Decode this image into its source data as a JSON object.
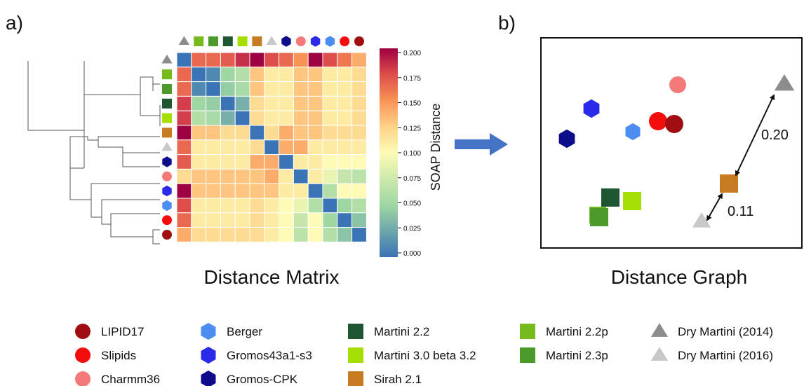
{
  "panels": {
    "a": {
      "label": "a)",
      "caption": "Distance Matrix"
    },
    "b": {
      "label": "b)",
      "caption": "Distance Graph"
    }
  },
  "colorbar": {
    "label": "SOAP Distance",
    "ticks": [
      "0.000",
      "0.025",
      "0.050",
      "0.075",
      "0.100",
      "0.125",
      "0.150",
      "0.175",
      "0.200"
    ]
  },
  "graph_labels": {
    "edge_upper": "0.20",
    "edge_lower": "0.11"
  },
  "legend": [
    {
      "name": "LIPID17",
      "shape": "circle",
      "color": "#a10e12"
    },
    {
      "name": "Slipids",
      "shape": "circle",
      "color": "#f40d0d"
    },
    {
      "name": "Charmm36",
      "shape": "circle",
      "color": "#f47a7a"
    },
    {
      "name": "Berger",
      "shape": "hexagon",
      "color": "#4b8df0"
    },
    {
      "name": "Gromos43a1-s3",
      "shape": "hexagon",
      "color": "#2a2ae8"
    },
    {
      "name": "Gromos-CPK",
      "shape": "hexagon",
      "color": "#0d0d8c"
    },
    {
      "name": "Martini 2.2",
      "shape": "square",
      "color": "#1e5631"
    },
    {
      "name": "Martini 3.0 beta 3.2",
      "shape": "square",
      "color": "#a4de02"
    },
    {
      "name": "Sirah 2.1",
      "shape": "square",
      "color": "#c87a20"
    },
    {
      "name": "Martini 2.2p",
      "shape": "square",
      "color": "#76ba1b"
    },
    {
      "name": "Martini 2.3p",
      "shape": "square",
      "color": "#4c9a2a"
    },
    {
      "name": "Dry Martini (2014)",
      "shape": "triangle",
      "color": "#8c8c8c"
    },
    {
      "name": "Dry Martini (2016)",
      "shape": "triangle",
      "color": "#c8c8c8"
    }
  ],
  "matrix_order": [
    "Dry Martini (2014)",
    "Martini 2.2p",
    "Martini 2.3p",
    "Martini 2.2",
    "Martini 3.0 beta 3.2",
    "Sirah 2.1",
    "Dry Martini (2016)",
    "Gromos-CPK",
    "Charmm36",
    "Gromos43a1-s3",
    "Berger",
    "Slipids",
    "LIPID17"
  ],
  "matrix_values": [
    [
      0.0,
      0.165,
      0.165,
      0.17,
      0.185,
      0.2,
      0.175,
      0.165,
      0.15,
      0.2,
      0.175,
      0.16,
      0.14
    ],
    [
      0.165,
      0.0,
      0.01,
      0.05,
      0.06,
      0.13,
      0.11,
      0.11,
      0.13,
      0.13,
      0.11,
      0.11,
      0.12
    ],
    [
      0.165,
      0.01,
      0.0,
      0.045,
      0.055,
      0.13,
      0.11,
      0.11,
      0.13,
      0.13,
      0.11,
      0.11,
      0.12
    ],
    [
      0.18,
      0.05,
      0.045,
      0.0,
      0.03,
      0.12,
      0.11,
      0.11,
      0.13,
      0.13,
      0.11,
      0.11,
      0.12
    ],
    [
      0.18,
      0.06,
      0.055,
      0.03,
      0.0,
      0.12,
      0.11,
      0.11,
      0.13,
      0.13,
      0.11,
      0.11,
      0.12
    ],
    [
      0.2,
      0.13,
      0.13,
      0.12,
      0.12,
      0.0,
      0.12,
      0.14,
      0.13,
      0.13,
      0.12,
      0.12,
      0.12
    ],
    [
      0.165,
      0.11,
      0.11,
      0.11,
      0.11,
      0.12,
      0.0,
      0.14,
      0.14,
      0.11,
      0.11,
      0.11,
      0.11
    ],
    [
      0.17,
      0.11,
      0.11,
      0.11,
      0.11,
      0.14,
      0.14,
      0.0,
      0.11,
      0.11,
      0.1,
      0.1,
      0.1
    ],
    [
      0.12,
      0.13,
      0.13,
      0.13,
      0.13,
      0.13,
      0.14,
      0.11,
      0.0,
      0.11,
      0.09,
      0.07,
      0.065
    ],
    [
      0.2,
      0.13,
      0.13,
      0.13,
      0.13,
      0.13,
      0.13,
      0.11,
      0.11,
      0.0,
      0.06,
      0.1,
      0.1
    ],
    [
      0.175,
      0.11,
      0.11,
      0.11,
      0.11,
      0.12,
      0.11,
      0.1,
      0.09,
      0.06,
      0.0,
      0.05,
      0.06
    ],
    [
      0.165,
      0.11,
      0.11,
      0.11,
      0.11,
      0.12,
      0.11,
      0.1,
      0.07,
      0.1,
      0.05,
      0.0,
      0.04
    ],
    [
      0.14,
      0.12,
      0.12,
      0.12,
      0.12,
      0.12,
      0.11,
      0.1,
      0.065,
      0.1,
      0.06,
      0.04,
      0.0
    ]
  ],
  "dendrogram_edges": [
    [
      [
        40,
        87
      ],
      [
        40,
        186
      ],
      [
        120,
        186
      ],
      [
        120,
        87
      ]
    ],
    [
      [
        120,
        87
      ],
      [
        120,
        135
      ]
    ],
    [
      [
        120,
        135
      ],
      [
        200,
        135
      ],
      [
        200,
        155
      ]
    ],
    [
      [
        200,
        135
      ],
      [
        200,
        110
      ]
    ],
    [
      [
        200,
        110
      ],
      [
        218,
        110
      ],
      [
        218,
        130
      ],
      [
        218,
        120
      ],
      [
        228,
        120
      ]
    ],
    [
      [
        200,
        155
      ],
      [
        200,
        165
      ],
      [
        228,
        165
      ],
      [
        228,
        150
      ],
      [
        228,
        180
      ]
    ],
    [
      [
        120,
        186
      ],
      [
        120,
        240
      ]
    ],
    [
      [
        120,
        240
      ],
      [
        100,
        240
      ],
      [
        100,
        285
      ]
    ],
    [
      [
        100,
        240
      ],
      [
        100,
        195
      ]
    ],
    [
      [
        100,
        195
      ],
      [
        125,
        195
      ],
      [
        125,
        200
      ],
      [
        140,
        200
      ]
    ],
    [
      [
        140,
        200
      ],
      [
        140,
        195
      ],
      [
        228,
        195
      ]
    ],
    [
      [
        140,
        200
      ],
      [
        140,
        210
      ],
      [
        175,
        210
      ],
      [
        175,
        218
      ],
      [
        228,
        218
      ]
    ],
    [
      [
        175,
        210
      ],
      [
        175,
        238
      ],
      [
        228,
        238
      ]
    ],
    [
      [
        100,
        285
      ],
      [
        130,
        285
      ],
      [
        130,
        262
      ],
      [
        228,
        262
      ]
    ],
    [
      [
        130,
        285
      ],
      [
        130,
        310
      ],
      [
        145,
        310
      ],
      [
        145,
        285
      ],
      [
        228,
        285
      ]
    ],
    [
      [
        145,
        310
      ],
      [
        145,
        320
      ],
      [
        158,
        320
      ],
      [
        158,
        305
      ],
      [
        228,
        305
      ]
    ],
    [
      [
        158,
        320
      ],
      [
        158,
        338
      ],
      [
        218,
        338
      ],
      [
        218,
        328
      ],
      [
        228,
        328
      ]
    ],
    [
      [
        218,
        338
      ],
      [
        218,
        348
      ],
      [
        228,
        348
      ]
    ]
  ]
}
